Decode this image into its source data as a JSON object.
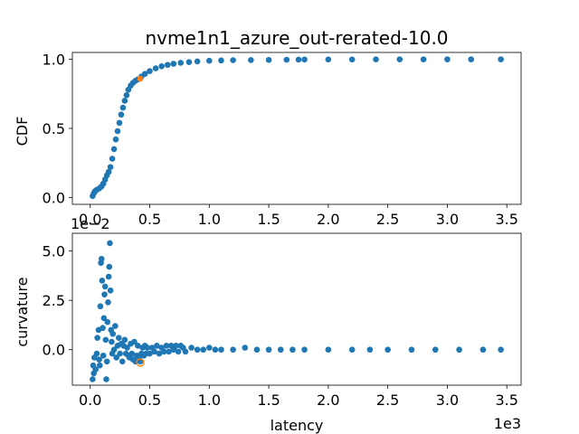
{
  "chart_data": [
    {
      "type": "scatter",
      "title": "nvme1n1_azure_out-rerated-10.0",
      "xlabel": "",
      "ylabel": "CDF",
      "xlim": [
        -150,
        3620
      ],
      "ylim": [
        -0.05,
        1.05
      ],
      "xticks": [
        0.0,
        500,
        1000,
        1500,
        2000,
        2500,
        3000,
        3500
      ],
      "xtick_labels": [
        "0.0",
        "0.5",
        "1.0",
        "1.5",
        "2.0",
        "2.5",
        "3.0",
        "3.5"
      ],
      "yticks": [
        0.0,
        0.5,
        1.0
      ],
      "ytick_labels": [
        "0.0",
        "0.5",
        "1.0"
      ],
      "series": [
        {
          "color": "#1f77b4",
          "points": [
            [
              20,
              0.01
            ],
            [
              30,
              0.03
            ],
            [
              40,
              0.045
            ],
            [
              55,
              0.055
            ],
            [
              75,
              0.065
            ],
            [
              95,
              0.08
            ],
            [
              110,
              0.1
            ],
            [
              125,
              0.13
            ],
            [
              140,
              0.16
            ],
            [
              155,
              0.185
            ],
            [
              170,
              0.22
            ],
            [
              185,
              0.28
            ],
            [
              200,
              0.35
            ],
            [
              215,
              0.42
            ],
            [
              230,
              0.48
            ],
            [
              245,
              0.54
            ],
            [
              260,
              0.6
            ],
            [
              275,
              0.65
            ],
            [
              290,
              0.7
            ],
            [
              305,
              0.74
            ],
            [
              320,
              0.78
            ],
            [
              340,
              0.81
            ],
            [
              360,
              0.83
            ],
            [
              380,
              0.845
            ],
            [
              400,
              0.855
            ],
            [
              430,
              0.875
            ],
            [
              460,
              0.895
            ],
            [
              500,
              0.915
            ],
            [
              550,
              0.935
            ],
            [
              600,
              0.95
            ],
            [
              650,
              0.96
            ],
            [
              700,
              0.968
            ],
            [
              760,
              0.975
            ],
            [
              830,
              0.98
            ],
            [
              900,
              0.985
            ],
            [
              1000,
              0.99
            ],
            [
              1100,
              0.992
            ],
            [
              1200,
              0.994
            ],
            [
              1350,
              0.995
            ],
            [
              1500,
              0.996
            ],
            [
              1650,
              0.997
            ],
            [
              1750,
              0.998
            ],
            [
              1800,
              0.999
            ],
            [
              2000,
              0.999
            ],
            [
              2200,
              0.999
            ],
            [
              2400,
              0.9995
            ],
            [
              2600,
              1.0
            ],
            [
              2800,
              1.0
            ],
            [
              3000,
              1.0
            ],
            [
              3200,
              1.0
            ],
            [
              3450,
              1.0
            ]
          ]
        },
        {
          "color": "#ff7f0e",
          "points": [
            [
              420,
              0.86
            ]
          ]
        }
      ]
    },
    {
      "type": "scatter",
      "title": "",
      "xlabel": "latency",
      "ylabel": "curvature",
      "x_offset_label": "1e3",
      "y_offset_label": "1e−2",
      "xlim": [
        -150,
        3620
      ],
      "ylim": [
        -0.018,
        0.059
      ],
      "xticks": [
        0.0,
        500,
        1000,
        1500,
        2000,
        2500,
        3000,
        3500
      ],
      "xtick_labels": [
        "0.0",
        "0.5",
        "1.0",
        "1.5",
        "2.0",
        "2.5",
        "3.0",
        "3.5"
      ],
      "yticks": [
        0.0,
        0.025,
        0.05
      ],
      "ytick_labels": [
        "0.0",
        "2.5",
        "5.0"
      ],
      "series": [
        {
          "color": "#1f77b4",
          "points": [
            [
              20,
              -0.015
            ],
            [
              25,
              -0.008
            ],
            [
              30,
              -0.012
            ],
            [
              35,
              -0.004
            ],
            [
              45,
              -0.01
            ],
            [
              55,
              -0.002
            ],
            [
              60,
              0.006
            ],
            [
              70,
              0.01
            ],
            [
              75,
              -0.005
            ],
            [
              80,
              -0.008
            ],
            [
              85,
              0.022
            ],
            [
              90,
              0.044
            ],
            [
              95,
              0.046
            ],
            [
              100,
              0.035
            ],
            [
              105,
              0.011
            ],
            [
              110,
              -0.003
            ],
            [
              115,
              0.016
            ],
            [
              120,
              0.028
            ],
            [
              125,
              0.032
            ],
            [
              130,
              0.005
            ],
            [
              135,
              -0.015
            ],
            [
              140,
              -0.006
            ],
            [
              145,
              0.014
            ],
            [
              150,
              0.024
            ],
            [
              155,
              0.037
            ],
            [
              160,
              0.042
            ],
            [
              165,
              0.054
            ],
            [
              170,
              0.03
            ],
            [
              175,
              0.01
            ],
            [
              180,
              0.004
            ],
            [
              185,
              -0.002
            ],
            [
              190,
              0.008
            ],
            [
              200,
              0.0
            ],
            [
              210,
              0.012
            ],
            [
              220,
              -0.004
            ],
            [
              230,
              0.002
            ],
            [
              240,
              0.006
            ],
            [
              250,
              -0.002
            ],
            [
              260,
              0.003
            ],
            [
              270,
              -0.006
            ],
            [
              280,
              0.002
            ],
            [
              290,
              0.005
            ],
            [
              300,
              -0.002
            ],
            [
              310,
              0.001
            ],
            [
              320,
              -0.003
            ],
            [
              330,
              -0.004
            ],
            [
              340,
              0.003
            ],
            [
              350,
              -0.002
            ],
            [
              360,
              -0.005
            ],
            [
              370,
              0.004
            ],
            [
              380,
              -0.006
            ],
            [
              390,
              -0.003
            ],
            [
              400,
              0.002
            ],
            [
              410,
              -0.004
            ],
            [
              420,
              -0.006
            ],
            [
              430,
              -0.002
            ],
            [
              440,
              0.001
            ],
            [
              450,
              -0.003
            ],
            [
              460,
              0.002
            ],
            [
              470,
              -0.002
            ],
            [
              480,
              0.001
            ],
            [
              500,
              -0.002
            ],
            [
              520,
              0.001
            ],
            [
              540,
              -0.001
            ],
            [
              560,
              0.002
            ],
            [
              580,
              -0.002
            ],
            [
              600,
              0.001
            ],
            [
              620,
              -0.001
            ],
            [
              640,
              0.002
            ],
            [
              660,
              -0.001
            ],
            [
              680,
              0.002
            ],
            [
              700,
              0.0
            ],
            [
              720,
              0.002
            ],
            [
              740,
              -0.001
            ],
            [
              760,
              0.002
            ],
            [
              780,
              0.001
            ],
            [
              800,
              -0.001
            ],
            [
              850,
              0.001
            ],
            [
              900,
              0.0
            ],
            [
              950,
              0.0
            ],
            [
              1000,
              0.001
            ],
            [
              1050,
              0.0
            ],
            [
              1100,
              0.0
            ],
            [
              1200,
              0.0
            ],
            [
              1300,
              0.001
            ],
            [
              1400,
              0.0
            ],
            [
              1500,
              0.0
            ],
            [
              1600,
              0.0
            ],
            [
              1700,
              0.0
            ],
            [
              1800,
              0.0
            ],
            [
              2000,
              0.0
            ],
            [
              2200,
              0.0
            ],
            [
              2350,
              0.0
            ],
            [
              2500,
              0.0
            ],
            [
              2700,
              0.0
            ],
            [
              2900,
              0.0
            ],
            [
              3100,
              0.0
            ],
            [
              3300,
              0.0
            ],
            [
              3450,
              0.0
            ]
          ]
        },
        {
          "color": "#ff7f0e",
          "hollow": true,
          "points": [
            [
              420,
              -0.0065
            ]
          ]
        }
      ]
    }
  ]
}
